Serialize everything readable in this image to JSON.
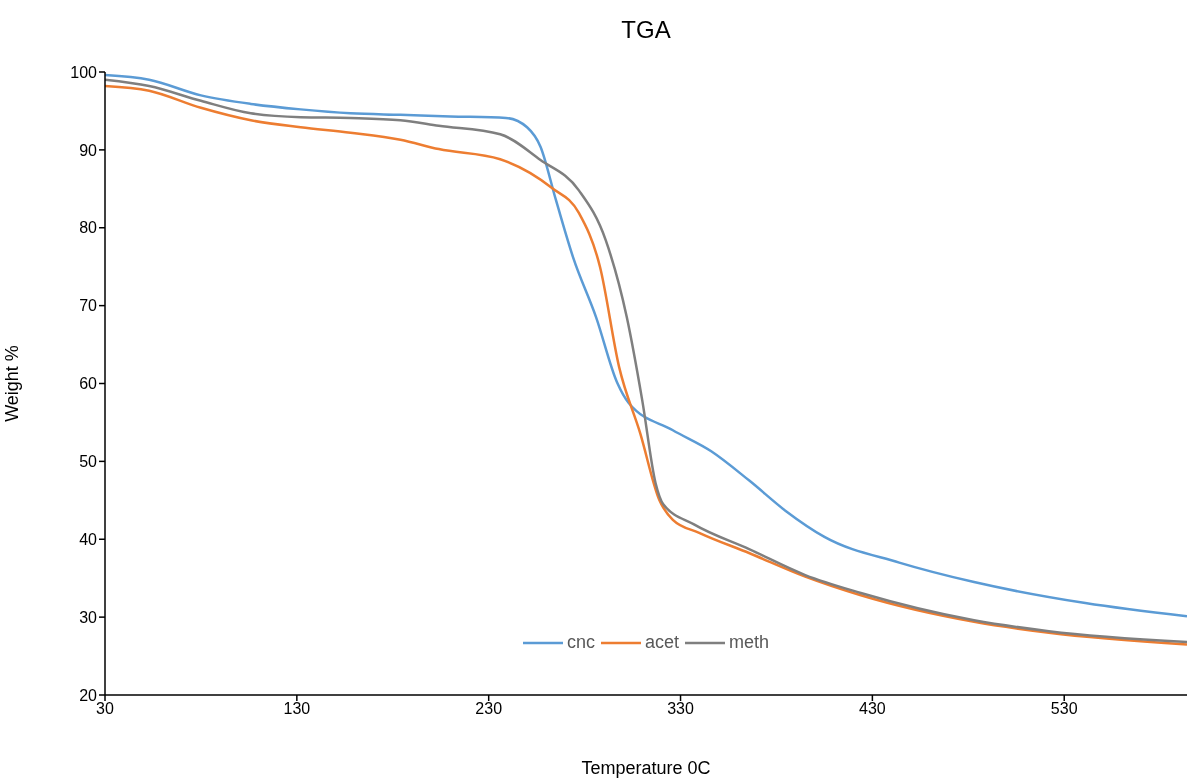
{
  "chart_data": {
    "type": "line",
    "title": "TGA",
    "xlabel": "Temperature 0C",
    "ylabel": "Weight %",
    "xlim": [
      30,
      594
    ],
    "xticks": [
      30,
      130,
      230,
      330,
      430,
      530
    ],
    "ylim": [
      20,
      100
    ],
    "yticks": [
      20,
      30,
      40,
      50,
      60,
      70,
      80,
      90,
      100
    ],
    "grid": false,
    "legend": "bottom",
    "marker": "none",
    "line_style": "solid",
    "series": [
      {
        "name": "cnc",
        "color": "#5b9bd5",
        "x": [
          30,
          53,
          80,
          106,
          132,
          158,
          184,
          210,
          239,
          250,
          257,
          265,
          274,
          286,
          297,
          303,
          326,
          346,
          366,
          385,
          405,
          444,
          483,
          541,
          594
        ],
        "values": [
          99.6,
          99.0,
          97.0,
          95.9,
          95.2,
          94.7,
          94.5,
          94.3,
          94.1,
          92.9,
          90.4,
          83.6,
          76.2,
          68.5,
          60.1,
          57.5,
          54.0,
          51.3,
          47.5,
          43.6,
          40.3,
          37.0,
          34.5,
          31.8,
          30.1
        ]
      },
      {
        "name": "acet",
        "color": "#ed7d31",
        "x": [
          30,
          53,
          80,
          106,
          132,
          158,
          184,
          204,
          236,
          263,
          277,
          288,
          298,
          309,
          319,
          326,
          340,
          366,
          395,
          424,
          483,
          522,
          594
        ],
        "values": [
          98.2,
          97.6,
          95.4,
          93.8,
          92.9,
          92.2,
          91.3,
          90.1,
          88.8,
          85.1,
          81.9,
          75.0,
          62.1,
          53.6,
          45.0,
          42.5,
          40.8,
          38.2,
          35.2,
          32.8,
          29.4,
          28.0,
          26.5
        ]
      },
      {
        "name": "meth",
        "color": "#7f7f7f",
        "x": [
          30,
          53,
          80,
          106,
          132,
          158,
          184,
          204,
          236,
          257,
          277,
          291,
          302,
          310,
          317,
          321,
          337,
          366,
          395,
          424,
          483,
          522,
          594
        ],
        "values": [
          99.0,
          98.2,
          96.3,
          94.7,
          94.2,
          94.1,
          93.8,
          93.1,
          92.0,
          88.7,
          84.8,
          78.4,
          68.5,
          57.9,
          47.2,
          44.5,
          41.9,
          38.7,
          35.4,
          33.1,
          29.6,
          28.2,
          26.8
        ]
      }
    ]
  }
}
